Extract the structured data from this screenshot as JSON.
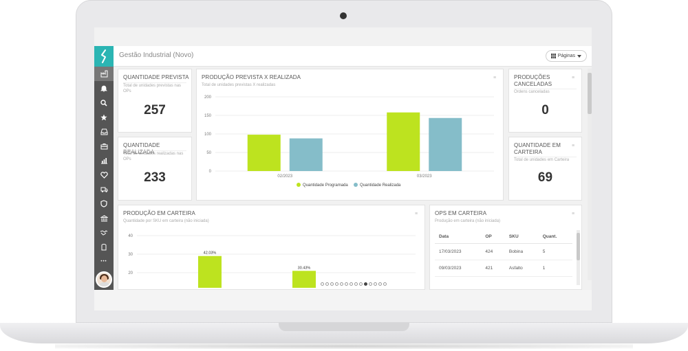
{
  "header": {
    "app_title": "Gestão Industrial (Novo)",
    "pages_label": "Páginas"
  },
  "sidebar": {
    "items": [
      {
        "icon": "factory-icon"
      },
      {
        "icon": "bell-icon"
      },
      {
        "icon": "search-icon"
      },
      {
        "icon": "star-icon"
      },
      {
        "icon": "inbox-icon"
      },
      {
        "icon": "briefcase-icon"
      },
      {
        "icon": "bar-chart-icon"
      },
      {
        "icon": "heart-icon"
      },
      {
        "icon": "truck-icon"
      },
      {
        "icon": "shield-icon"
      },
      {
        "icon": "bank-icon"
      },
      {
        "icon": "handshake-icon"
      },
      {
        "icon": "user-badge-icon"
      },
      {
        "icon": "more-icon"
      }
    ],
    "more_label": "•••"
  },
  "cards": {
    "planned": {
      "title": "QUANTIDADE PREVISTA",
      "subtitle": "Total de unidades previstas nas OPs",
      "value": "257"
    },
    "realized": {
      "title": "QUANTIDADE REALIZADA",
      "subtitle": "Total de unidades realizadas nas OPs",
      "value": "233"
    },
    "cancelled": {
      "title": "PRODUÇÕES CANCELADAS",
      "subtitle": "Ordens canceladas",
      "value": "0"
    },
    "portfolio_qty": {
      "title": "QUANTIDADE EM CARTEIRA",
      "subtitle": "Total de unidades em Carteira",
      "value": "69"
    },
    "planned_vs_realized": {
      "title": "PRODUÇÃO PREVISTA X REALIZADA",
      "subtitle": "Total de unidades previstas X realizadas"
    },
    "production_portfolio": {
      "title": "PRODUÇÃO EM CARTEIRA",
      "subtitle": "Quantidade por SKU em carteira (não iniciada)"
    },
    "ops_portfolio": {
      "title": "OPS EM CARTEIRA",
      "subtitle": "Produção em carteira (não iniciada)",
      "columns": [
        "Data",
        "OP",
        "SKU",
        "Quant."
      ],
      "rows": [
        [
          "17/03/2023",
          "424",
          "Bobina",
          "5"
        ],
        [
          "09/03/2023",
          "421",
          "Asfalto",
          "1"
        ]
      ]
    }
  },
  "chart_data": [
    {
      "type": "bar",
      "categories": [
        "02/2023",
        "03/2023"
      ],
      "series": [
        {
          "name": "Quantidade Programada",
          "values": [
            98,
            158
          ],
          "color": "#bde31f"
        },
        {
          "name": "Quantidade Realizada",
          "values": [
            88,
            143
          ],
          "color": "#85bdc9"
        }
      ],
      "yticks": [
        "0",
        "50",
        "100",
        "150",
        "200"
      ],
      "ylim": [
        0,
        200
      ],
      "grid": true,
      "legend": "bottom"
    },
    {
      "type": "bar",
      "categories": [
        "",
        ""
      ],
      "series": [
        {
          "name": "",
          "values": [
            29,
            21
          ],
          "color": "#bde31f",
          "labels": [
            "42.03%",
            "30.43%"
          ]
        }
      ],
      "yticks": [
        "20",
        "30",
        "40"
      ],
      "ylim": [
        10,
        40
      ],
      "grid": true
    }
  ],
  "pagination": {
    "total": 14,
    "active": 10
  },
  "colors": {
    "accent": "#2bb5b3",
    "sidebar": "#555555",
    "bar_green": "#bde31f",
    "bar_blue": "#85bdc9"
  }
}
